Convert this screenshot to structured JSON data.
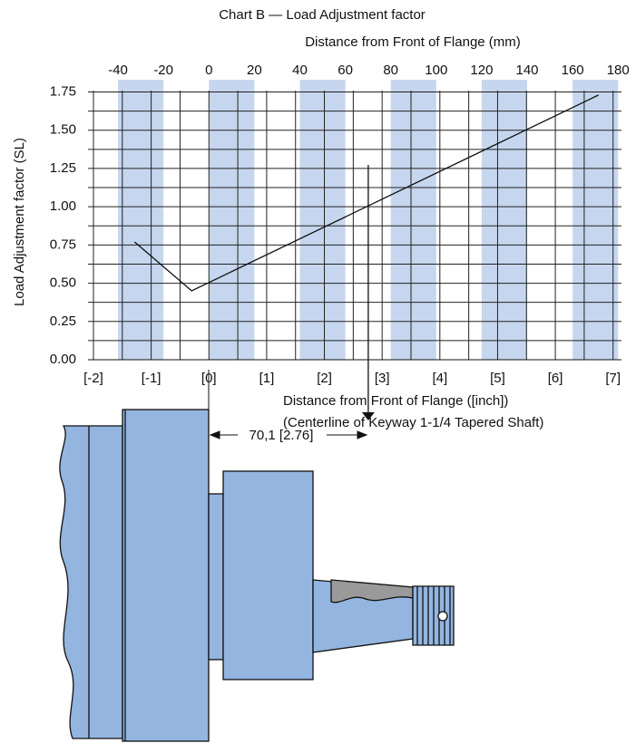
{
  "chart_data": {
    "type": "line",
    "title": "Chart B — Load Adjustment factor",
    "xlabel": "Distance from Front of Flange (mm)",
    "ylabel": "Load Adjustment factor (SL)",
    "x2label": [
      "Distance from Front of Flange ([inch])",
      "(Centerline of Keyway 1-1/4 Tapered Shaft)"
    ],
    "x": [
      -32.7,
      -7.6,
      171.4
    ],
    "values": [
      0.77,
      0.45,
      1.73
    ],
    "color": "#111111",
    "band_color": "#c6d6ee",
    "xlim": [
      -50,
      181.5
    ],
    "ylim": [
      0,
      1.83
    ],
    "xticks": [
      -40,
      -20,
      0,
      20,
      40,
      60,
      80,
      100,
      120,
      140,
      160,
      180
    ],
    "x2ticks": [
      {
        "value": -50.8,
        "label": "[-2]"
      },
      {
        "value": -25.4,
        "label": "[-1]"
      },
      {
        "value": 0,
        "label": "[0]"
      },
      {
        "value": 25.4,
        "label": "[1]"
      },
      {
        "value": 50.8,
        "label": "[2]"
      },
      {
        "value": 76.2,
        "label": "[3]"
      },
      {
        "value": 101.6,
        "label": "[4]"
      },
      {
        "value": 127,
        "label": "[5]"
      },
      {
        "value": 152.4,
        "label": "[6]"
      },
      {
        "value": 177.8,
        "label": "[7]"
      }
    ],
    "yticks": [
      {
        "value": 0,
        "label": "0.00"
      },
      {
        "value": 0.25,
        "label": "0.25"
      },
      {
        "value": 0.5,
        "label": "0.50"
      },
      {
        "value": 0.75,
        "label": "0.75"
      },
      {
        "value": 1,
        "label": "1.00"
      },
      {
        "value": 1.25,
        "label": "1.25"
      },
      {
        "value": 1.5,
        "label": "1.50"
      },
      {
        "value": 1.75,
        "label": "1.75"
      }
    ],
    "grid": true,
    "marker": {
      "x": 70.1,
      "label": "70,1 [2.76]"
    }
  }
}
